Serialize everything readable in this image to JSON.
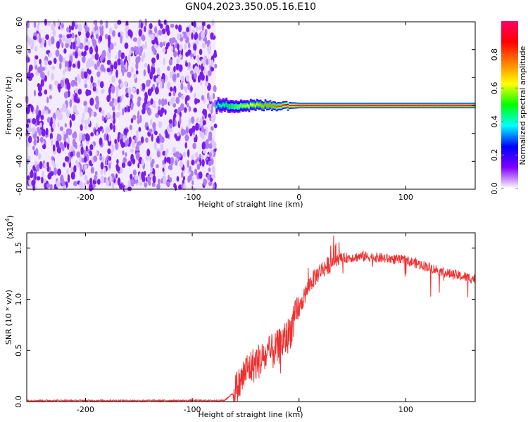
{
  "chart_data": [
    {
      "type": "heatmap",
      "title": "GN04.2023.350.05.16.E10",
      "xlabel": "Height of straight line (km)",
      "ylabel": "Frequency (Hz)",
      "xlim": [
        -255,
        165
      ],
      "ylim": [
        -60,
        60
      ],
      "xticks": [
        -200,
        -100,
        0,
        100
      ],
      "yticks": [
        -60,
        -40,
        -20,
        0,
        20,
        40,
        60
      ],
      "noise_region": {
        "x_from": -255,
        "x_to": -78,
        "y_from": -60,
        "y_to": 60,
        "typical_amplitude": 0.1
      },
      "signal_band": [
        {
          "x": -78,
          "half_width_hz": 5,
          "peak_amplitude": 0.4
        },
        {
          "x": -50,
          "half_width_hz": 4,
          "peak_amplitude": 0.6
        },
        {
          "x": -20,
          "half_width_hz": 3,
          "peak_amplitude": 0.8
        },
        {
          "x": 0,
          "half_width_hz": 2,
          "peak_amplitude": 1.0
        },
        {
          "x": 100,
          "half_width_hz": 2,
          "peak_amplitude": 1.0
        },
        {
          "x": 165,
          "half_width_hz": 2,
          "peak_amplitude": 1.0
        }
      ],
      "colorbar": {
        "label": "Normalized spectral amplitude",
        "range": [
          0,
          1
        ],
        "ticks": [
          "0.0",
          "0.2",
          "0.4",
          "0.6",
          "0.8"
        ],
        "colors": [
          "#ffffff",
          "#7f00ff",
          "#0000ff",
          "#00ffff",
          "#00ff00",
          "#ffff00",
          "#ff8000",
          "#ff0000",
          "#ff0066"
        ]
      }
    },
    {
      "type": "line",
      "xlabel": "Height of straight line (km)",
      "ylabel": "SNR (10 * v/v)",
      "yscale_note": "(x10",
      "yscale_exp": "4",
      "xlim": [
        -255,
        165
      ],
      "ylim": [
        0,
        1.65
      ],
      "xticks": [
        -200,
        -100,
        0,
        100
      ],
      "yticks": [
        "0.0",
        "0.5",
        "1.0",
        "1.5"
      ],
      "ytick_values": [
        0,
        0.5,
        1.0,
        1.5
      ],
      "line_color": "#f03030",
      "series": [
        {
          "x": [
            -255,
            -200,
            -150,
            -100,
            -70,
            -62,
            -55,
            -50,
            -40,
            -30,
            -20,
            -10,
            0,
            10,
            20,
            30,
            40,
            60,
            80,
            100,
            120,
            140,
            165
          ],
          "y": [
            0.01,
            0.01,
            0.01,
            0.01,
            0.01,
            0.08,
            0.18,
            0.3,
            0.38,
            0.45,
            0.52,
            0.65,
            0.9,
            1.15,
            1.28,
            1.35,
            1.4,
            1.42,
            1.4,
            1.38,
            1.32,
            1.25,
            1.2
          ]
        }
      ]
    }
  ]
}
